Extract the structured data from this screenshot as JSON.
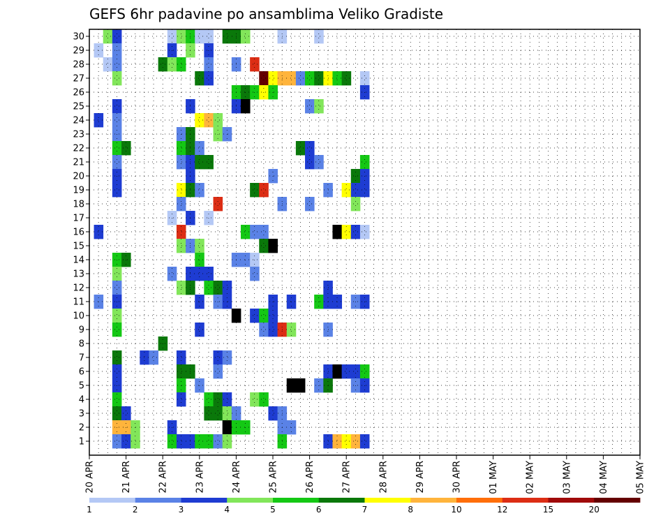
{
  "chart_data": {
    "type": "heatmap",
    "title": "GEFS 6hr padavine po ansamblima Veliko Gradiste",
    "xlabel": "",
    "ylabel": "",
    "x_ticks": [
      "20 APR",
      "21 APR",
      "22 APR",
      "23 APR",
      "24 APR",
      "25 APR",
      "26 APR",
      "27 APR",
      "28 APR",
      "29 APR",
      "30 APR",
      "01 MAY",
      "02 MAY",
      "03 MAY",
      "04 MAY",
      "05 MAY"
    ],
    "y_ticks": [
      "1",
      "2",
      "3",
      "4",
      "5",
      "6",
      "7",
      "8",
      "9",
      "10",
      "11",
      "12",
      "13",
      "14",
      "15",
      "16",
      "17",
      "18",
      "19",
      "20",
      "21",
      "22",
      "23",
      "24",
      "25",
      "26",
      "27",
      "28",
      "29",
      "30"
    ],
    "steps_per_day": 4,
    "legend_labels": [
      "1",
      "2",
      "3",
      "4",
      "5",
      "6",
      "7",
      "8",
      "10",
      "12",
      "15",
      "20"
    ],
    "legend_colors": [
      "#b4c8f5",
      "#5a82e6",
      "#1e3cd2",
      "#82e65a",
      "#14c814",
      "#0a780a",
      "#ffff00",
      "#ffb43c",
      "#ff6e0a",
      "#dc2d14",
      "#a00a0a",
      "#640000"
    ],
    "cells": [
      [
        2,
        30,
        4
      ],
      [
        3,
        30,
        3
      ],
      [
        9,
        30,
        1
      ],
      [
        10,
        30,
        4
      ],
      [
        11,
        30,
        5
      ],
      [
        12,
        30,
        1
      ],
      [
        13,
        30,
        1
      ],
      [
        15,
        30,
        6
      ],
      [
        16,
        30,
        6
      ],
      [
        17,
        30,
        4
      ],
      [
        21,
        30,
        1
      ],
      [
        25,
        30,
        1
      ],
      [
        1,
        29,
        1
      ],
      [
        3,
        29,
        2
      ],
      [
        9,
        29,
        3
      ],
      [
        11,
        29,
        4
      ],
      [
        13,
        29,
        3
      ],
      [
        2,
        28,
        1
      ],
      [
        3,
        28,
        2
      ],
      [
        8,
        28,
        6
      ],
      [
        9,
        28,
        4
      ],
      [
        10,
        28,
        5
      ],
      [
        13,
        28,
        2
      ],
      [
        16,
        28,
        2
      ],
      [
        18,
        28,
        10
      ],
      [
        3,
        27,
        4
      ],
      [
        12,
        27,
        6
      ],
      [
        13,
        27,
        3
      ],
      [
        19,
        27,
        12
      ],
      [
        20,
        27,
        7
      ],
      [
        21,
        27,
        8
      ],
      [
        22,
        27,
        8
      ],
      [
        23,
        27,
        2
      ],
      [
        24,
        27,
        5
      ],
      [
        25,
        27,
        6
      ],
      [
        26,
        27,
        7
      ],
      [
        27,
        27,
        5
      ],
      [
        28,
        27,
        6
      ],
      [
        30,
        27,
        1
      ],
      [
        16,
        26,
        5
      ],
      [
        17,
        26,
        6
      ],
      [
        18,
        26,
        5
      ],
      [
        19,
        26,
        7
      ],
      [
        20,
        26,
        5
      ],
      [
        30,
        26,
        3
      ],
      [
        3,
        25,
        3
      ],
      [
        11,
        25,
        3
      ],
      [
        16,
        25,
        3
      ],
      [
        17,
        25,
        15
      ],
      [
        24,
        25,
        2
      ],
      [
        25,
        25,
        4
      ],
      [
        1,
        24,
        3
      ],
      [
        3,
        24,
        2
      ],
      [
        12,
        24,
        7
      ],
      [
        13,
        24,
        8
      ],
      [
        14,
        24,
        4
      ],
      [
        3,
        23,
        2
      ],
      [
        10,
        23,
        2
      ],
      [
        11,
        23,
        6
      ],
      [
        14,
        23,
        4
      ],
      [
        15,
        23,
        2
      ],
      [
        3,
        22,
        5
      ],
      [
        4,
        22,
        6
      ],
      [
        10,
        22,
        5
      ],
      [
        11,
        22,
        6
      ],
      [
        12,
        22,
        2
      ],
      [
        23,
        22,
        6
      ],
      [
        24,
        22,
        3
      ],
      [
        3,
        21,
        2
      ],
      [
        10,
        21,
        2
      ],
      [
        11,
        21,
        3
      ],
      [
        12,
        21,
        6
      ],
      [
        13,
        21,
        6
      ],
      [
        24,
        21,
        3
      ],
      [
        25,
        21,
        2
      ],
      [
        30,
        21,
        5
      ],
      [
        3,
        20,
        3
      ],
      [
        11,
        20,
        3
      ],
      [
        20,
        20,
        2
      ],
      [
        29,
        20,
        6
      ],
      [
        30,
        20,
        3
      ],
      [
        3,
        19,
        3
      ],
      [
        10,
        19,
        7
      ],
      [
        11,
        19,
        6
      ],
      [
        12,
        19,
        2
      ],
      [
        18,
        19,
        6
      ],
      [
        19,
        19,
        10
      ],
      [
        26,
        19,
        2
      ],
      [
        28,
        19,
        7
      ],
      [
        29,
        19,
        3
      ],
      [
        30,
        19,
        3
      ],
      [
        10,
        18,
        2
      ],
      [
        14,
        18,
        10
      ],
      [
        21,
        18,
        2
      ],
      [
        24,
        18,
        2
      ],
      [
        29,
        18,
        4
      ],
      [
        9,
        17,
        1
      ],
      [
        11,
        17,
        3
      ],
      [
        13,
        17,
        1
      ],
      [
        1,
        16,
        3
      ],
      [
        10,
        16,
        10
      ],
      [
        17,
        16,
        5
      ],
      [
        18,
        16,
        2
      ],
      [
        19,
        16,
        2
      ],
      [
        27,
        16,
        15
      ],
      [
        28,
        16,
        7
      ],
      [
        29,
        16,
        3
      ],
      [
        30,
        16,
        1
      ],
      [
        10,
        15,
        4
      ],
      [
        11,
        15,
        2
      ],
      [
        12,
        15,
        4
      ],
      [
        19,
        15,
        6
      ],
      [
        20,
        15,
        15
      ],
      [
        3,
        14,
        5
      ],
      [
        4,
        14,
        6
      ],
      [
        12,
        14,
        5
      ],
      [
        16,
        14,
        2
      ],
      [
        17,
        14,
        2
      ],
      [
        18,
        14,
        1
      ],
      [
        3,
        13,
        4
      ],
      [
        9,
        13,
        2
      ],
      [
        11,
        13,
        3
      ],
      [
        12,
        13,
        3
      ],
      [
        13,
        13,
        3
      ],
      [
        18,
        13,
        2
      ],
      [
        3,
        12,
        2
      ],
      [
        10,
        12,
        4
      ],
      [
        11,
        12,
        6
      ],
      [
        13,
        12,
        5
      ],
      [
        14,
        12,
        6
      ],
      [
        15,
        12,
        3
      ],
      [
        26,
        12,
        3
      ],
      [
        1,
        11,
        2
      ],
      [
        3,
        11,
        3
      ],
      [
        12,
        11,
        3
      ],
      [
        14,
        11,
        2
      ],
      [
        15,
        11,
        3
      ],
      [
        20,
        11,
        3
      ],
      [
        22,
        11,
        3
      ],
      [
        25,
        11,
        5
      ],
      [
        26,
        11,
        3
      ],
      [
        27,
        11,
        3
      ],
      [
        29,
        11,
        2
      ],
      [
        30,
        11,
        3
      ],
      [
        3,
        10,
        4
      ],
      [
        16,
        10,
        15
      ],
      [
        18,
        10,
        3
      ],
      [
        19,
        10,
        5
      ],
      [
        20,
        10,
        3
      ],
      [
        3,
        9,
        5
      ],
      [
        12,
        9,
        3
      ],
      [
        19,
        9,
        2
      ],
      [
        20,
        9,
        3
      ],
      [
        21,
        9,
        10
      ],
      [
        22,
        9,
        4
      ],
      [
        26,
        9,
        2
      ],
      [
        8,
        8,
        6
      ],
      [
        3,
        7,
        6
      ],
      [
        6,
        7,
        3
      ],
      [
        7,
        7,
        2
      ],
      [
        10,
        7,
        3
      ],
      [
        14,
        7,
        3
      ],
      [
        15,
        7,
        2
      ],
      [
        3,
        6,
        3
      ],
      [
        10,
        6,
        6
      ],
      [
        11,
        6,
        6
      ],
      [
        14,
        6,
        2
      ],
      [
        26,
        6,
        3
      ],
      [
        27,
        6,
        20
      ],
      [
        28,
        6,
        3
      ],
      [
        29,
        6,
        3
      ],
      [
        30,
        6,
        5
      ],
      [
        3,
        5,
        3
      ],
      [
        10,
        5,
        5
      ],
      [
        12,
        5,
        2
      ],
      [
        22,
        5,
        15
      ],
      [
        23,
        5,
        15
      ],
      [
        25,
        5,
        2
      ],
      [
        26,
        5,
        6
      ],
      [
        29,
        5,
        2
      ],
      [
        30,
        5,
        3
      ],
      [
        3,
        4,
        5
      ],
      [
        10,
        4,
        3
      ],
      [
        13,
        4,
        5
      ],
      [
        14,
        4,
        6
      ],
      [
        15,
        4,
        3
      ],
      [
        18,
        4,
        4
      ],
      [
        19,
        4,
        5
      ],
      [
        3,
        3,
        6
      ],
      [
        4,
        3,
        3
      ],
      [
        13,
        3,
        6
      ],
      [
        14,
        3,
        6
      ],
      [
        15,
        3,
        4
      ],
      [
        16,
        3,
        2
      ],
      [
        20,
        3,
        3
      ],
      [
        21,
        3,
        2
      ],
      [
        3,
        2,
        8
      ],
      [
        4,
        2,
        8
      ],
      [
        5,
        2,
        4
      ],
      [
        9,
        2,
        3
      ],
      [
        15,
        2,
        15
      ],
      [
        16,
        2,
        5
      ],
      [
        17,
        2,
        5
      ],
      [
        21,
        2,
        2
      ],
      [
        22,
        2,
        2
      ],
      [
        3,
        1,
        2
      ],
      [
        4,
        1,
        3
      ],
      [
        5,
        1,
        4
      ],
      [
        9,
        1,
        5
      ],
      [
        10,
        1,
        3
      ],
      [
        11,
        1,
        3
      ],
      [
        12,
        1,
        5
      ],
      [
        13,
        1,
        5
      ],
      [
        14,
        1,
        2
      ],
      [
        15,
        1,
        4
      ],
      [
        21,
        1,
        5
      ],
      [
        26,
        1,
        3
      ],
      [
        27,
        1,
        8
      ],
      [
        28,
        1,
        7
      ],
      [
        29,
        1,
        8
      ],
      [
        30,
        1,
        3
      ]
    ]
  }
}
